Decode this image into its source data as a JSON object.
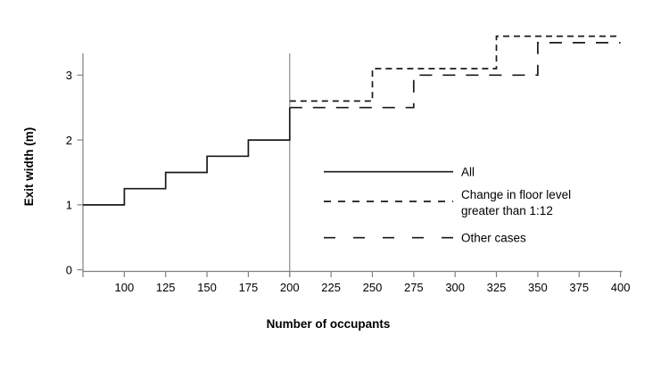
{
  "chart_data": {
    "type": "line",
    "subtype": "step",
    "title": "",
    "xlabel": "Number of occupants",
    "ylabel": "Exit width (m)",
    "xlim": [
      75,
      400
    ],
    "ylim": [
      0,
      3.33
    ],
    "x_ticks": [
      100,
      125,
      150,
      175,
      200,
      225,
      250,
      275,
      300,
      325,
      350,
      375,
      400
    ],
    "y_ticks": [
      0,
      1,
      2,
      3
    ],
    "grid": false,
    "legend_position": "inside lower right",
    "reference_line": {
      "axis": "x",
      "value": 200
    },
    "series": [
      {
        "name": "All",
        "style": "solid",
        "points": [
          [
            75,
            1
          ],
          [
            100,
            1
          ],
          [
            100,
            1.25
          ],
          [
            125,
            1.25
          ],
          [
            125,
            1.5
          ],
          [
            150,
            1.5
          ],
          [
            150,
            1.75
          ],
          [
            175,
            1.75
          ],
          [
            175,
            2
          ],
          [
            200,
            2
          ],
          [
            200,
            2.5
          ]
        ]
      },
      {
        "name": "Change in floor level greater than 1:12",
        "style": "short-dash",
        "points": [
          [
            200,
            2.6
          ],
          [
            250,
            2.6
          ],
          [
            250,
            3.1
          ],
          [
            325,
            3.1
          ],
          [
            325,
            3.6
          ],
          [
            400,
            3.6
          ]
        ]
      },
      {
        "name": "Other cases",
        "style": "long-dash",
        "points": [
          [
            200,
            2.5
          ],
          [
            275,
            2.5
          ],
          [
            275,
            3.0
          ],
          [
            350,
            3.0
          ],
          [
            350,
            3.5
          ],
          [
            400,
            3.5
          ]
        ]
      }
    ],
    "legend": [
      {
        "label_lines": [
          "All"
        ],
        "style": "solid"
      },
      {
        "label_lines": [
          "Change in floor level",
          "greater than 1:12"
        ],
        "style": "short-dash"
      },
      {
        "label_lines": [
          "Other cases"
        ],
        "style": "long-dash"
      }
    ]
  },
  "colors": {
    "background": "#ffffff",
    "axis": "#808080",
    "reference_line": "#808080",
    "series_line": "#1a1a1a",
    "text": "#000000"
  }
}
